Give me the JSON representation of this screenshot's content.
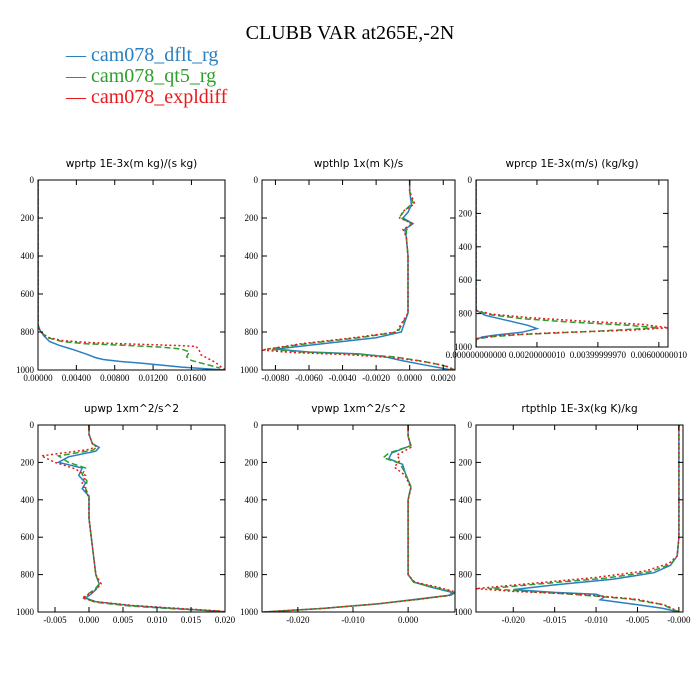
{
  "title": "CLUBB VAR at265E,-2N",
  "legend": [
    {
      "label": "cam078_dflt_rg",
      "color": "#2a7fc0",
      "dash": "solid"
    },
    {
      "label": "cam078_qt5_rg",
      "color": "#2ca02c",
      "dash": "dashed"
    },
    {
      "label": "cam078_expldiff",
      "color": "#e8191c",
      "dash": "dotted"
    }
  ],
  "chart_data": [
    {
      "type": "line",
      "title": "wprtp  1E-3x(m kg)/(s kg)",
      "xlim": [
        0,
        0.0195
      ],
      "ylim": [
        1000,
        0
      ],
      "yreverse": true,
      "xticks": [
        0,
        0.004,
        0.008,
        0.012,
        0.016
      ],
      "xticklabels": [
        "0.00000",
        "0.00400",
        "0.00800",
        "0.01200",
        "0.01600"
      ],
      "yticks": [
        0,
        200,
        400,
        600,
        800,
        1000
      ],
      "series": [
        {
          "name": "cam078_dflt_rg",
          "x": [
            0,
            0,
            0,
            0,
            0.0002,
            0.0006,
            0.0012,
            0.0022,
            0.0035,
            0.005,
            0.006,
            0.0068,
            0.0085,
            0.011,
            0.015,
            0.0195
          ],
          "y": [
            0,
            200,
            500,
            760,
            790,
            820,
            850,
            870,
            890,
            915,
            935,
            945,
            955,
            965,
            985,
            1000
          ]
        },
        {
          "name": "cam078_qt5_rg",
          "x": [
            0,
            0,
            0,
            0,
            0.0003,
            0.001,
            0.0025,
            0.005,
            0.009,
            0.013,
            0.015,
            0.0158,
            0.0155,
            0.016,
            0.019
          ],
          "y": [
            0,
            200,
            500,
            770,
            800,
            830,
            850,
            862,
            870,
            880,
            890,
            905,
            930,
            950,
            990
          ]
        },
        {
          "name": "cam078_expldiff",
          "x": [
            0,
            0,
            0,
            0,
            0.0003,
            0.001,
            0.0025,
            0.005,
            0.009,
            0.0125,
            0.015,
            0.0165,
            0.0168,
            0.017,
            0.0185,
            0.0195
          ],
          "y": [
            0,
            200,
            500,
            770,
            800,
            828,
            845,
            855,
            862,
            868,
            872,
            876,
            895,
            920,
            960,
            1000
          ]
        }
      ]
    },
    {
      "type": "line",
      "title": "wpthlp  1x(m K)/s",
      "xlim": [
        -0.0088,
        0.0027
      ],
      "ylim": [
        1000,
        0
      ],
      "yreverse": true,
      "xticks": [
        -0.008,
        -0.006,
        -0.004,
        -0.002,
        0,
        0.002
      ],
      "xticklabels": [
        "-0.0080",
        "-0.0060",
        "-0.0040",
        "-0.0020",
        "0.0000",
        "0.0020"
      ],
      "yticks": [
        0,
        200,
        400,
        600,
        800,
        1000
      ],
      "series": [
        {
          "name": "cam078_dflt_rg",
          "x": [
            0,
            0,
            0.0001,
            -0.0001,
            -0.0004,
            0.0002,
            -0.0003,
            -0.0002,
            -0.0001,
            -0.0001,
            -0.0005,
            -0.002,
            -0.005,
            -0.008,
            -0.006,
            -0.003,
            -0.0015,
            -0.0005,
            0.001,
            0.0025
          ],
          "y": [
            0,
            60,
            130,
            170,
            200,
            230,
            260,
            300,
            400,
            700,
            800,
            830,
            860,
            890,
            905,
            915,
            930,
            950,
            975,
            1000
          ]
        },
        {
          "name": "cam078_qt5_rg",
          "x": [
            0,
            0,
            0.0002,
            -0.0003,
            -0.0006,
            0.0001,
            -0.0002,
            -0.0002,
            -0.0001,
            -0.0001,
            -0.0007,
            -0.003,
            -0.006,
            -0.0085,
            -0.0065,
            -0.0035,
            -0.001,
            0.0005,
            0.002,
            0.0027
          ],
          "y": [
            0,
            60,
            120,
            160,
            195,
            230,
            265,
            300,
            400,
            700,
            800,
            830,
            860,
            890,
            905,
            915,
            930,
            950,
            975,
            1000
          ]
        },
        {
          "name": "cam078_expldiff",
          "x": [
            0,
            0,
            0.0003,
            -0.0004,
            -0.0006,
            0.0002,
            -0.0004,
            -0.0002,
            -0.0001,
            -0.0001,
            -0.0008,
            -0.0035,
            -0.0065,
            -0.0088,
            -0.007,
            -0.004,
            -0.001,
            0.0008,
            0.0022,
            0.0027
          ],
          "y": [
            0,
            60,
            125,
            165,
            200,
            230,
            260,
            300,
            400,
            700,
            800,
            832,
            862,
            895,
            908,
            918,
            935,
            955,
            980,
            1000
          ]
        }
      ]
    },
    {
      "type": "line",
      "title": "wprcp  1E-3x(m/s) (kg/kg)",
      "xlim": [
        0,
        0.0063
      ],
      "ylim": [
        1000,
        0
      ],
      "yreverse": true,
      "xticks": [
        0,
        0.002,
        0.004,
        0.006
      ],
      "xticklabels": [
        "0.000000000000",
        "0.00200000010",
        "0.00399999970",
        "0.00600000010"
      ],
      "yticks": [
        0,
        200,
        400,
        600,
        800,
        1000
      ],
      "series": [
        {
          "name": "cam078_dflt_rg",
          "x": [
            0,
            0,
            0,
            0.0003,
            0.001,
            0.0017,
            0.002,
            0.0015,
            0.0006,
            0.0002,
            0.0001,
            0,
            0,
            0,
            0
          ],
          "y": [
            0,
            200,
            780,
            810,
            840,
            870,
            890,
            912,
            930,
            940,
            948,
            955,
            970,
            985,
            1000
          ]
        },
        {
          "name": "cam078_qt5_rg",
          "x": [
            0,
            0,
            0,
            0.0004,
            0.0015,
            0.003,
            0.005,
            0.006,
            0.004,
            0.0015,
            0.0004,
            0,
            0,
            0
          ],
          "y": [
            0,
            200,
            780,
            805,
            830,
            850,
            870,
            885,
            905,
            925,
            940,
            955,
            975,
            1000
          ]
        },
        {
          "name": "cam078_expldiff",
          "x": [
            0,
            0,
            0,
            0.0005,
            0.0018,
            0.0035,
            0.0055,
            0.0063,
            0.005,
            0.0025,
            0.0008,
            0,
            0,
            0
          ],
          "y": [
            0,
            200,
            780,
            803,
            825,
            845,
            865,
            885,
            900,
            915,
            930,
            950,
            975,
            1000
          ]
        }
      ]
    },
    {
      "type": "line",
      "title": "upwp  1xm^2/s^2",
      "xlim": [
        -0.0075,
        0.02
      ],
      "ylim": [
        1000,
        0
      ],
      "yreverse": true,
      "xticks": [
        -0.005,
        0,
        0.005,
        0.01,
        0.015,
        0.02
      ],
      "xticklabels": [
        "-0.005",
        "0.000",
        "0.005",
        "0.010",
        "0.015",
        "0.020"
      ],
      "yticks": [
        0,
        200,
        400,
        600,
        800,
        1000
      ],
      "series": [
        {
          "name": "cam078_dflt_rg",
          "x": [
            0,
            0,
            0.0005,
            0.0015,
            0.001,
            -0.003,
            -0.0045,
            -0.001,
            -0.0015,
            -0.0005,
            -0.001,
            0,
            0,
            0.001,
            0.0015,
            0.001,
            0.0003,
            -0.0005,
            0.001,
            0.006,
            0.012,
            0.019,
            0.02
          ],
          "y": [
            0,
            50,
            100,
            120,
            140,
            170,
            200,
            230,
            270,
            310,
            340,
            380,
            500,
            800,
            850,
            880,
            905,
            925,
            945,
            965,
            980,
            995,
            1000
          ]
        },
        {
          "name": "cam078_qt5_rg",
          "x": [
            0,
            0,
            0.0005,
            0.0012,
            0.0006,
            -0.0045,
            -0.003,
            -0.0005,
            -0.001,
            -0.0003,
            -0.0005,
            0,
            0,
            0.001,
            0.0015,
            0.0008,
            -0.0002,
            -0.0008,
            0.001,
            0.006,
            0.012,
            0.019,
            0.02
          ],
          "y": [
            0,
            50,
            100,
            115,
            135,
            165,
            200,
            230,
            265,
            300,
            340,
            380,
            500,
            800,
            850,
            880,
            905,
            925,
            948,
            968,
            982,
            995,
            1000
          ]
        },
        {
          "name": "cam078_expldiff",
          "x": [
            0,
            0,
            0.0005,
            0.001,
            0.0002,
            -0.007,
            -0.005,
            -0.002,
            -0.0005,
            -0.001,
            -0.0005,
            0,
            0,
            0.001,
            0.0018,
            0.001,
            0.0,
            -0.001,
            0.001,
            0.0065,
            0.013,
            0.0195,
            0.02
          ],
          "y": [
            0,
            50,
            100,
            112,
            130,
            165,
            200,
            235,
            270,
            310,
            350,
            390,
            500,
            800,
            850,
            880,
            905,
            925,
            945,
            965,
            980,
            995,
            1000
          ]
        }
      ]
    },
    {
      "type": "line",
      "title": "vpwp  1xm^2/s^2",
      "xlim": [
        -0.0265,
        0.0085
      ],
      "ylim": [
        1000,
        0
      ],
      "yreverse": true,
      "xticks": [
        -0.02,
        -0.01,
        0
      ],
      "xticklabels": [
        "-0.020",
        "-0.010",
        "0.000"
      ],
      "yticks": [
        0,
        200,
        400,
        600,
        800,
        1000
      ],
      "series": [
        {
          "name": "cam078_dflt_rg",
          "x": [
            0,
            0,
            0.0005,
            -0.003,
            -0.0035,
            -0.001,
            -0.0005,
            0.0005,
            0,
            0,
            0.001,
            0.0045,
            0.008,
            0.0075,
            0.002,
            -0.005,
            -0.015,
            -0.026
          ],
          "y": [
            0,
            60,
            110,
            150,
            180,
            210,
            260,
            330,
            400,
            800,
            840,
            870,
            895,
            910,
            930,
            955,
            980,
            1000
          ]
        },
        {
          "name": "cam078_qt5_rg",
          "x": [
            0,
            0,
            0.0005,
            -0.0035,
            -0.0045,
            -0.0015,
            -0.0005,
            0.0005,
            0,
            0,
            0.001,
            0.005,
            0.0085,
            0.0078,
            0.002,
            -0.006,
            -0.016,
            -0.0265
          ],
          "y": [
            0,
            60,
            110,
            150,
            175,
            205,
            260,
            330,
            400,
            800,
            840,
            870,
            895,
            910,
            932,
            958,
            982,
            1000
          ]
        },
        {
          "name": "cam078_expldiff",
          "x": [
            0,
            0,
            0.0005,
            -0.002,
            -0.0015,
            -0.0025,
            -0.0005,
            0.0005,
            0,
            0,
            0.0012,
            0.0055,
            0.0085,
            0.0078,
            0.002,
            -0.006,
            -0.016,
            -0.0265
          ],
          "y": [
            0,
            60,
            120,
            160,
            190,
            225,
            270,
            340,
            400,
            800,
            840,
            868,
            892,
            910,
            932,
            958,
            982,
            1000
          ]
        }
      ]
    },
    {
      "type": "line",
      "title": "rtpthlp  1E-3x(kg K)/kg",
      "xlim": [
        -0.0245,
        0.0005
      ],
      "ylim": [
        1000,
        0
      ],
      "yreverse": true,
      "xticks": [
        -0.02,
        -0.015,
        -0.01,
        -0.005,
        0
      ],
      "xticklabels": [
        "-0.020",
        "-0.015",
        "-0.010",
        "-0.005",
        "-0.000"
      ],
      "yticks": [
        0,
        200,
        400,
        600,
        800,
        1000
      ],
      "series": [
        {
          "name": "cam078_dflt_rg",
          "x": [
            0,
            0,
            -0.0002,
            -0.001,
            -0.003,
            -0.008,
            -0.015,
            -0.02,
            -0.015,
            -0.01,
            -0.009,
            -0.0095,
            -0.006,
            -0.002,
            0
          ],
          "y": [
            0,
            600,
            700,
            750,
            790,
            825,
            855,
            880,
            895,
            905,
            920,
            935,
            955,
            980,
            1000
          ]
        },
        {
          "name": "cam078_qt5_rg",
          "x": [
            0,
            0,
            -0.0002,
            -0.001,
            -0.0035,
            -0.009,
            -0.017,
            -0.023,
            -0.0185,
            -0.013,
            -0.006,
            -0.002,
            0
          ],
          "y": [
            0,
            600,
            700,
            745,
            785,
            820,
            850,
            875,
            890,
            905,
            930,
            960,
            1000
          ]
        },
        {
          "name": "cam078_expldiff",
          "x": [
            0,
            0,
            -0.0002,
            -0.0012,
            -0.004,
            -0.01,
            -0.018,
            -0.0245,
            -0.02,
            -0.012,
            -0.005,
            -0.0015,
            0
          ],
          "y": [
            0,
            600,
            700,
            740,
            780,
            815,
            848,
            875,
            890,
            905,
            932,
            965,
            1000
          ]
        }
      ]
    }
  ]
}
